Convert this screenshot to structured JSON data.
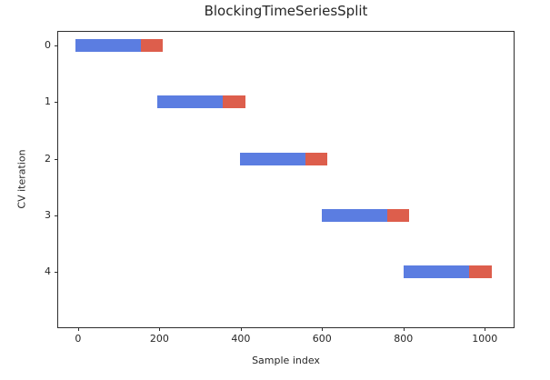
{
  "chart_data": {
    "type": "bar",
    "variant": "cv-indices-horizontal-segments",
    "title": "BlockingTimeSeriesSplit",
    "xlabel": "Sample index",
    "ylabel": "CV iteration",
    "x_ticks": [
      0,
      200,
      400,
      600,
      800,
      1000
    ],
    "y_ticks": [
      0,
      1,
      2,
      3,
      4
    ],
    "xlim": [
      -49,
      1071
    ],
    "ylim": [
      -0.24,
      4.97
    ],
    "grid": false,
    "legend": "none",
    "background_color": "#ffffff",
    "spine_color": "#2e2e2e",
    "train_color": "#5b7de1",
    "test_color": "#dd5e4c",
    "n_splits": 5,
    "n_samples": 1010,
    "marker_overhang": 7,
    "folds": [
      {
        "iteration": 0,
        "train": [
          0,
          161
        ],
        "test": [
          161,
          202
        ]
      },
      {
        "iteration": 1,
        "train": [
          202,
          363
        ],
        "test": [
          363,
          404
        ]
      },
      {
        "iteration": 2,
        "train": [
          404,
          565
        ],
        "test": [
          565,
          606
        ]
      },
      {
        "iteration": 3,
        "train": [
          606,
          767
        ],
        "test": [
          767,
          808
        ]
      },
      {
        "iteration": 4,
        "train": [
          808,
          969
        ],
        "test": [
          969,
          1010
        ]
      }
    ]
  }
}
